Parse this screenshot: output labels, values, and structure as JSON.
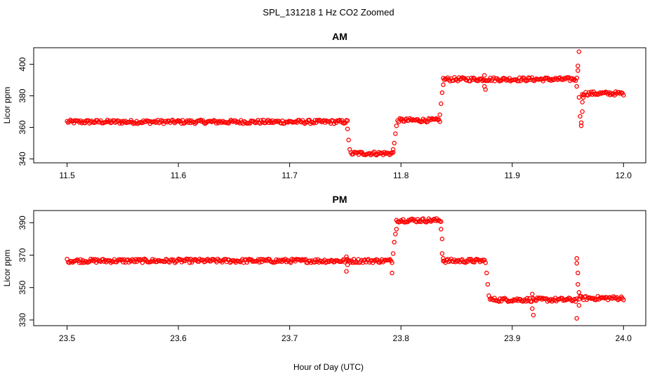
{
  "figure": {
    "title": "SPL_131218  1 Hz CO2 Zoomed",
    "xlabel": "Hour of Day (UTC)",
    "point_color": "#ff0000"
  },
  "chart_data": [
    {
      "type": "scatter",
      "title": "AM",
      "xlabel": "",
      "ylabel": "Licor ppm",
      "xlim": [
        11.47,
        12.02
      ],
      "ylim": [
        337.5,
        410.5
      ],
      "xticks": [
        11.5,
        11.6,
        11.7,
        11.8,
        11.9,
        12.0
      ],
      "xtick_labels": [
        "11.5",
        "11.6",
        "11.7",
        "11.8",
        "11.9",
        "12.0"
      ],
      "yticks": [
        340,
        360,
        380,
        400
      ],
      "ytick_labels": [
        "340",
        "360",
        "380",
        "400"
      ],
      "grid": false,
      "segments": [
        {
          "x0": 11.5,
          "x1": 11.752,
          "y": 363.5,
          "jitter": 1.2
        },
        {
          "x0": 11.756,
          "x1": 11.793,
          "y": 343.5,
          "jitter": 1.2
        },
        {
          "x0": 11.797,
          "x1": 11.835,
          "y": 364.5,
          "jitter": 1.2
        },
        {
          "x0": 11.838,
          "x1": 11.958,
          "y": 390.5,
          "jitter": 1.2
        },
        {
          "x0": 11.963,
          "x1": 12.0,
          "y": 381.5,
          "jitter": 1.2
        }
      ],
      "points": [
        {
          "x": 11.752,
          "y": 359
        },
        {
          "x": 11.753,
          "y": 352
        },
        {
          "x": 11.754,
          "y": 346
        },
        {
          "x": 11.755,
          "y": 344
        },
        {
          "x": 11.793,
          "y": 346
        },
        {
          "x": 11.794,
          "y": 350
        },
        {
          "x": 11.795,
          "y": 356
        },
        {
          "x": 11.796,
          "y": 361
        },
        {
          "x": 11.835,
          "y": 368
        },
        {
          "x": 11.836,
          "y": 375
        },
        {
          "x": 11.837,
          "y": 382
        },
        {
          "x": 11.838,
          "y": 387
        },
        {
          "x": 11.875,
          "y": 393
        },
        {
          "x": 11.875,
          "y": 386
        },
        {
          "x": 11.876,
          "y": 384
        },
        {
          "x": 11.958,
          "y": 386
        },
        {
          "x": 11.959,
          "y": 396
        },
        {
          "x": 11.959,
          "y": 399
        },
        {
          "x": 11.96,
          "y": 408
        },
        {
          "x": 11.96,
          "y": 379
        },
        {
          "x": 11.961,
          "y": 367
        },
        {
          "x": 11.962,
          "y": 363
        },
        {
          "x": 11.962,
          "y": 361
        },
        {
          "x": 11.963,
          "y": 370
        },
        {
          "x": 11.963,
          "y": 376
        },
        {
          "x": 11.964,
          "y": 379
        }
      ]
    },
    {
      "type": "scatter",
      "title": "PM",
      "xlabel": "",
      "ylabel": "Licor ppm",
      "xlim": [
        23.47,
        24.02
      ],
      "ylim": [
        326.5,
        397.5
      ],
      "xticks": [
        23.5,
        23.6,
        23.7,
        23.8,
        23.9,
        24.0
      ],
      "xtick_labels": [
        "23.5",
        "23.6",
        "23.7",
        "23.8",
        "23.9",
        "24.0"
      ],
      "yticks": [
        330,
        350,
        370,
        390
      ],
      "ytick_labels": [
        "330",
        "350",
        "370",
        "390"
      ],
      "grid": false,
      "segments": [
        {
          "x0": 23.5,
          "x1": 23.792,
          "y": 366.5,
          "jitter": 1.2
        },
        {
          "x0": 23.796,
          "x1": 23.836,
          "y": 391.5,
          "jitter": 1.2
        },
        {
          "x0": 23.838,
          "x1": 23.876,
          "y": 366.5,
          "jitter": 1.2
        },
        {
          "x0": 23.88,
          "x1": 23.958,
          "y": 342.5,
          "jitter": 1.2
        },
        {
          "x0": 23.96,
          "x1": 24.0,
          "y": 343.5,
          "jitter": 1.2
        }
      ],
      "points": [
        {
          "x": 23.751,
          "y": 369
        },
        {
          "x": 23.751,
          "y": 360
        },
        {
          "x": 23.752,
          "y": 364
        },
        {
          "x": 23.792,
          "y": 359
        },
        {
          "x": 23.793,
          "y": 371
        },
        {
          "x": 23.794,
          "y": 378
        },
        {
          "x": 23.795,
          "y": 383
        },
        {
          "x": 23.796,
          "y": 386
        },
        {
          "x": 23.836,
          "y": 386
        },
        {
          "x": 23.837,
          "y": 380
        },
        {
          "x": 23.837,
          "y": 371
        },
        {
          "x": 23.838,
          "y": 368
        },
        {
          "x": 23.877,
          "y": 359
        },
        {
          "x": 23.878,
          "y": 352
        },
        {
          "x": 23.879,
          "y": 345
        },
        {
          "x": 23.918,
          "y": 346
        },
        {
          "x": 23.918,
          "y": 337
        },
        {
          "x": 23.919,
          "y": 333
        },
        {
          "x": 23.958,
          "y": 368
        },
        {
          "x": 23.958,
          "y": 365
        },
        {
          "x": 23.959,
          "y": 359
        },
        {
          "x": 23.959,
          "y": 352
        },
        {
          "x": 23.96,
          "y": 347
        },
        {
          "x": 23.96,
          "y": 339
        },
        {
          "x": 23.958,
          "y": 331
        }
      ]
    }
  ]
}
